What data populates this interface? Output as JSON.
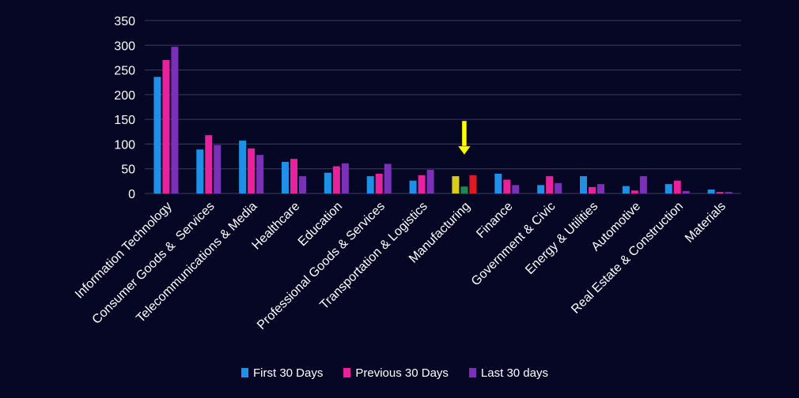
{
  "chart_data": {
    "type": "bar",
    "title": "",
    "xlabel": "",
    "ylabel": "",
    "ylim": [
      0,
      350
    ],
    "yticks": [
      0,
      50,
      100,
      150,
      200,
      250,
      300,
      350
    ],
    "grid": true,
    "legend_position": "bottom",
    "categories": [
      "Information Technology",
      "Consumer Goods &  Services",
      "Telecommunications & Media",
      "Healthcare",
      "Education",
      "Professional Goods & Services",
      "Transportation & Logistics",
      "Manufacturing",
      "Finance",
      "Government & Civic",
      "Energy & Utilities",
      "Automotive",
      "Real Estate & Construction",
      "Materials"
    ],
    "series": [
      {
        "name": "First 30 Days",
        "color": "#1e90e8",
        "values": [
          236,
          89,
          107,
          64,
          42,
          35,
          26,
          35,
          40,
          17,
          35,
          15,
          19,
          8
        ]
      },
      {
        "name": "Previous 30 Days",
        "color": "#e8229c",
        "values": [
          270,
          118,
          91,
          70,
          55,
          40,
          37,
          14,
          28,
          35,
          13,
          6,
          26,
          3
        ]
      },
      {
        "name": "Last 30 days",
        "color": "#7b30b8",
        "values": [
          297,
          98,
          78,
          35,
          61,
          60,
          48,
          37,
          17,
          21,
          19,
          35,
          5,
          3
        ]
      }
    ],
    "highlight": {
      "category": "Manufacturing",
      "series_colors": [
        "#d8cc1e",
        "#1f8a50",
        "#e01a24"
      ],
      "marker": "yellow-down-arrow",
      "marker_color": "#ffff00"
    },
    "text_color": "#ffffff",
    "grid_color": "#3a3d5c",
    "background": "#050724"
  }
}
